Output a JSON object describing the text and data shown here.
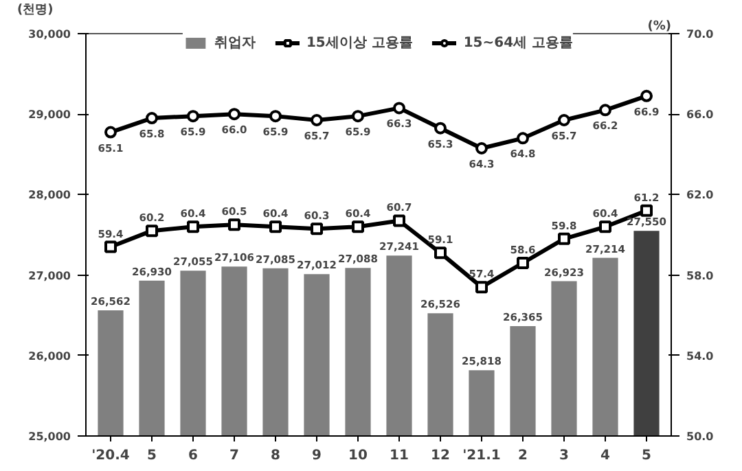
{
  "chart_data": {
    "type": "bar",
    "categories": [
      "'20.4",
      "5",
      "6",
      "7",
      "8",
      "9",
      "10",
      "11",
      "12",
      "'21.1",
      "2",
      "3",
      "4",
      "5"
    ],
    "ylabel": "(천명)",
    "y2label": "(%)",
    "ylim": [
      25000,
      30000
    ],
    "yticks": [
      {
        "value": 25000,
        "label": "25,000"
      },
      {
        "value": 26000,
        "label": "26,000"
      },
      {
        "value": 27000,
        "label": "27,000"
      },
      {
        "value": 28000,
        "label": "28,000"
      },
      {
        "value": 29000,
        "label": "29,000"
      },
      {
        "value": 30000,
        "label": "30,000"
      }
    ],
    "y2lim": [
      50,
      70
    ],
    "y2ticks": [
      {
        "value": 50,
        "label": "50.0"
      },
      {
        "value": 54,
        "label": "54.0"
      },
      {
        "value": 58,
        "label": "58.0"
      },
      {
        "value": 62,
        "label": "62.0"
      },
      {
        "value": 66,
        "label": "66.0"
      },
      {
        "value": 70,
        "label": "70.0"
      }
    ],
    "series": [
      {
        "name": "취업자",
        "colors": [
          "#808080",
          "#808080",
          "#808080",
          "#808080",
          "#808080",
          "#808080",
          "#808080",
          "#808080",
          "#808080",
          "#808080",
          "#808080",
          "#808080",
          "#808080",
          "#404040"
        ],
        "values": [
          26562,
          26930,
          27055,
          27106,
          27085,
          27012,
          27088,
          27241,
          26526,
          25818,
          26365,
          26923,
          27214,
          27550
        ],
        "value_labels": [
          "26,562",
          "26,930",
          "27,055",
          "27,106",
          "27,085",
          "27,012",
          "27,088",
          "27,241",
          "26,526",
          "25,818",
          "26,365",
          "26,923",
          "27,214",
          "27,550"
        ]
      },
      {
        "name": "15세이상 고용률",
        "type": "line",
        "axis": "y2",
        "color": "#000000",
        "marker": "square",
        "values": [
          59.4,
          60.2,
          60.4,
          60.5,
          60.4,
          60.3,
          60.4,
          60.7,
          59.1,
          57.4,
          58.6,
          59.8,
          60.4,
          61.2
        ],
        "value_labels": [
          "59.4",
          "60.2",
          "60.4",
          "60.5",
          "60.4",
          "60.3",
          "60.4",
          "60.7",
          "59.1",
          "57.4",
          "58.6",
          "59.8",
          "60.4",
          "61.2"
        ]
      },
      {
        "name": "15~64세 고용률",
        "type": "line",
        "axis": "y2",
        "color": "#000000",
        "marker": "circle",
        "values": [
          65.1,
          65.8,
          65.9,
          66.0,
          65.9,
          65.7,
          65.9,
          66.3,
          65.3,
          64.3,
          64.8,
          65.7,
          66.2,
          66.9
        ],
        "value_labels": [
          "65.1",
          "65.8",
          "65.9",
          "66.0",
          "65.9",
          "65.7",
          "65.9",
          "66.3",
          "65.3",
          "64.3",
          "64.8",
          "65.7",
          "66.2",
          "66.9"
        ]
      }
    ],
    "grid": false,
    "legend": "top"
  }
}
